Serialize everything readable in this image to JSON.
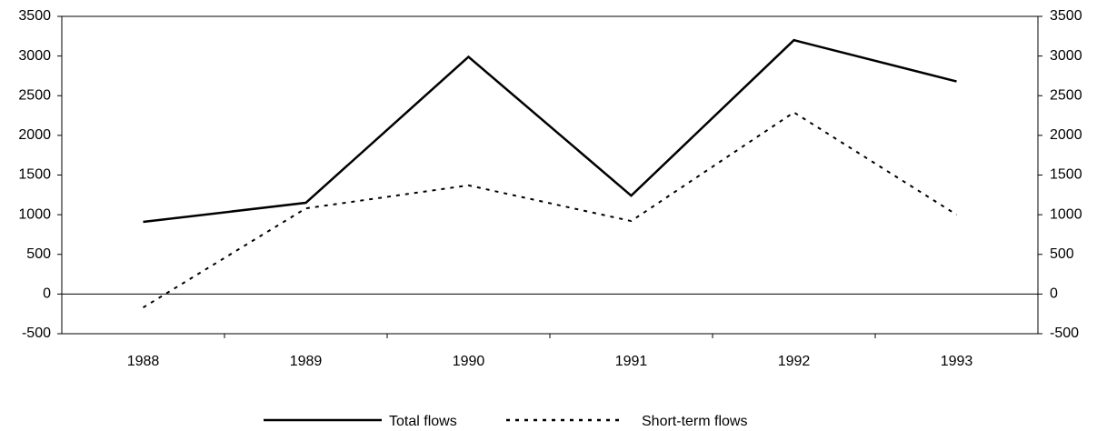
{
  "chart_data": {
    "type": "line",
    "categories": [
      "1988",
      "1989",
      "1990",
      "1991",
      "1992",
      "1993"
    ],
    "series": [
      {
        "name": "Total flows",
        "color": "#000000",
        "linestyle": "solid",
        "values": [
          910,
          1150,
          2990,
          1240,
          3200,
          2680
        ]
      },
      {
        "name": "Short-term flows",
        "color": "#000000",
        "linestyle": "dashed",
        "values": [
          -170,
          1080,
          1370,
          920,
          2290,
          1000
        ]
      }
    ],
    "ylim": [
      -500,
      3500
    ],
    "yticks": [
      -500,
      0,
      500,
      1000,
      1500,
      2000,
      2500,
      3000,
      3500
    ],
    "y2lim": [
      -500,
      3500
    ],
    "y2ticks": [
      -500,
      0,
      500,
      1000,
      1500,
      2000,
      2500,
      3000,
      3500
    ],
    "legend": "bottom"
  }
}
